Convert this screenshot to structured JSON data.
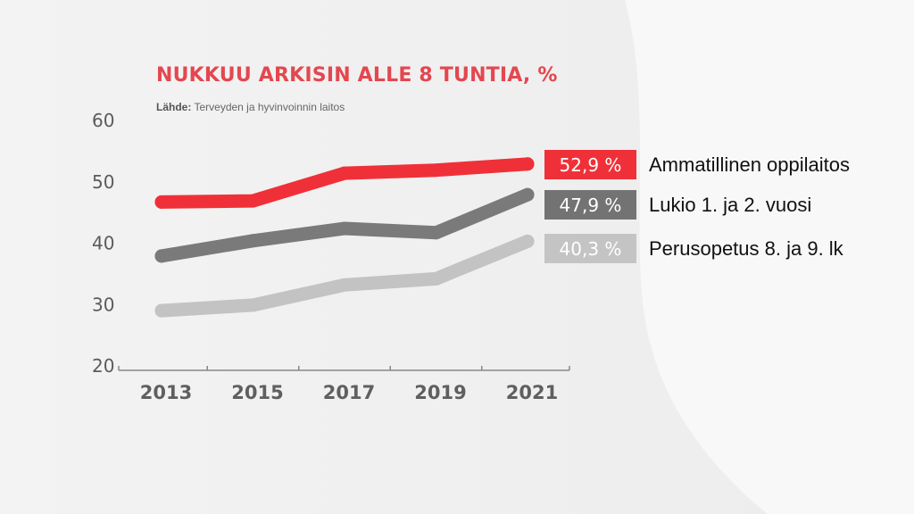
{
  "header": {
    "title": "NUKKUU ARKISIN ALLE 8 TUNTIA, %",
    "source_prefix": "Lähde:",
    "source_text": "Terveyden ja hyvinvoinnin laitos"
  },
  "colors": {
    "background": "#f1f1f1",
    "title": "#e4474f",
    "axis": "#888888"
  },
  "chart_data": {
    "type": "line",
    "title": "NUKKUU ARKISIN ALLE 8 TUNTIA, %",
    "x": [
      "2013",
      "2015",
      "2017",
      "2019",
      "2021"
    ],
    "y_ticks": [
      60,
      50,
      40,
      30,
      20
    ],
    "ylim": [
      20,
      60
    ],
    "grid": false,
    "legend": "right, end-of-line labels",
    "series": [
      {
        "name": "Ammatillinen oppilaitos",
        "values": [
          46.7,
          46.9,
          51.4,
          51.9,
          52.9
        ],
        "end_label": "52,9 %",
        "color": "#f03038",
        "label_color": "#f03038"
      },
      {
        "name": "Lukio 1. ja 2. vuosi",
        "values": [
          37.9,
          40.4,
          42.4,
          41.7,
          47.9
        ],
        "end_label": "47,9 %",
        "color": "#7a7a7a",
        "label_color": "#737373"
      },
      {
        "name": "Perusopetus 8. ja 9. lk",
        "values": [
          29.0,
          29.9,
          33.2,
          34.2,
          40.3
        ],
        "end_label": "40,3 %",
        "color": "#c3c3c3",
        "label_color": "#c4c4c4"
      }
    ]
  }
}
